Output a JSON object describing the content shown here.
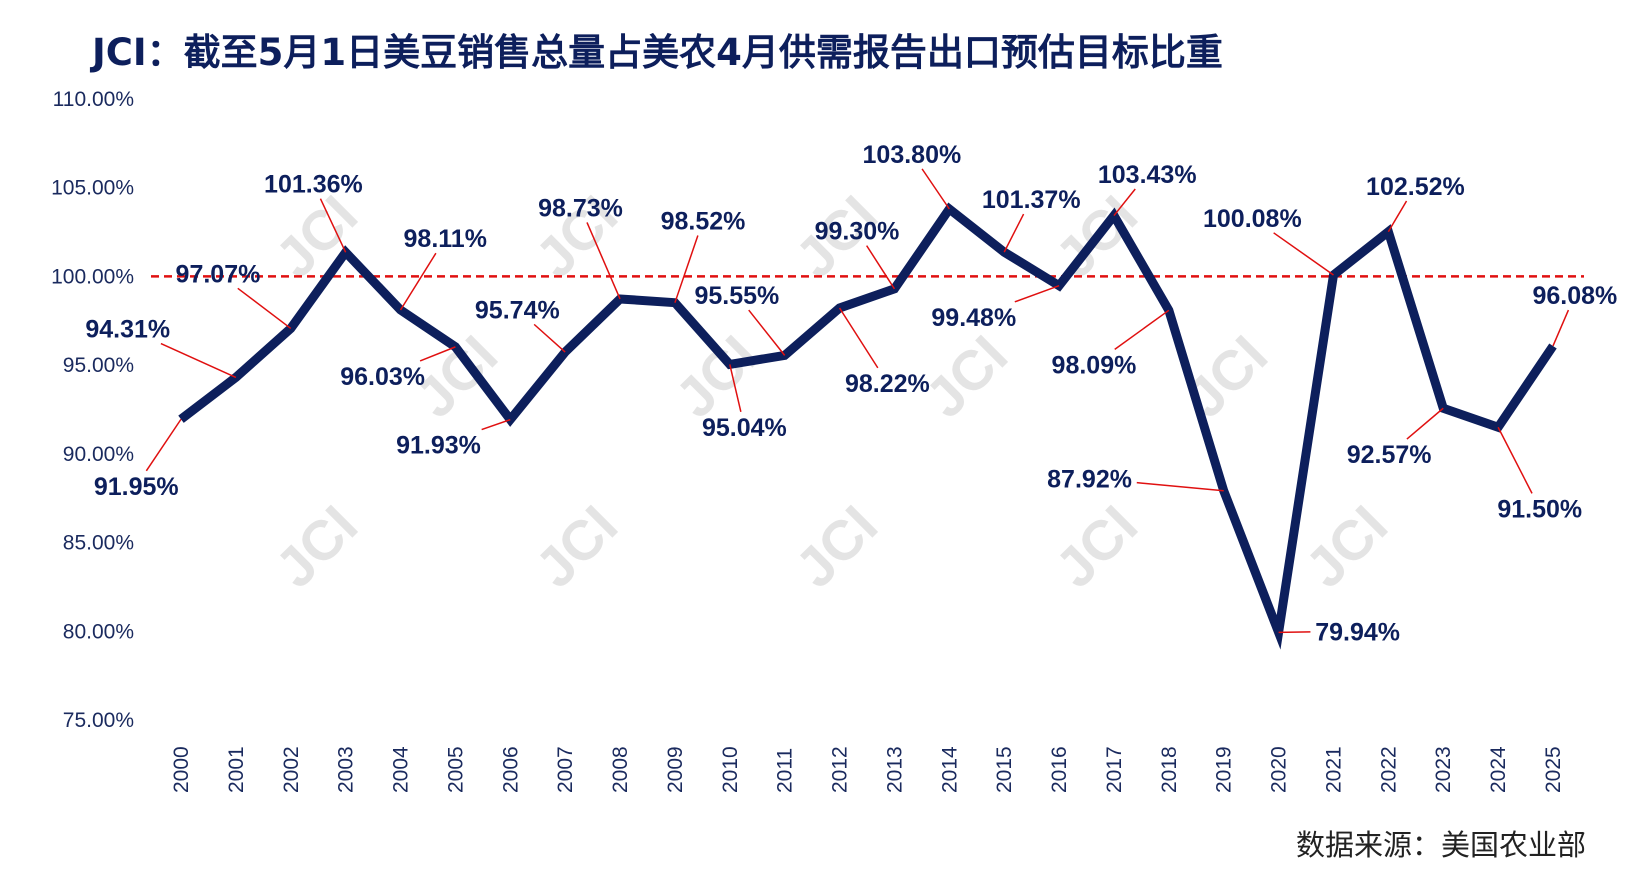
{
  "title": "JCI：截至5月1日美豆销售总量占美农4月供需报告出口预估目标比重",
  "source": "数据来源：美国农业部",
  "watermark": "JCI",
  "colors": {
    "line": "#0d1f5c",
    "reference_line": "#e01010",
    "leader": "#e01010",
    "text": "#0d1f5c"
  },
  "chart_data": {
    "type": "line",
    "title": "JCI：截至5月1日美豆销售总量占美农4月供需报告出口预估目标比重",
    "categories": [
      "2000",
      "2001",
      "2002",
      "2003",
      "2004",
      "2005",
      "2006",
      "2007",
      "2008",
      "2009",
      "2010",
      "2011",
      "2012",
      "2013",
      "2014",
      "2015",
      "2016",
      "2017",
      "2018",
      "2019",
      "2020",
      "2021",
      "2022",
      "2023",
      "2024",
      "2025"
    ],
    "values": [
      91.95,
      94.31,
      97.07,
      101.36,
      98.11,
      96.03,
      91.93,
      95.74,
      98.73,
      98.52,
      95.04,
      95.55,
      98.22,
      99.3,
      103.8,
      101.37,
      99.48,
      103.43,
      98.09,
      87.92,
      79.94,
      100.08,
      102.52,
      92.57,
      91.5,
      96.08
    ],
    "data_labels": [
      "91.95%",
      "94.31%",
      "97.07%",
      "101.36%",
      "98.11%",
      "96.03%",
      "91.93%",
      "95.74%",
      "98.73%",
      "98.52%",
      "95.04%",
      "95.55%",
      "98.22%",
      "99.30%",
      "103.80%",
      "101.37%",
      "99.48%",
      "103.43%",
      "98.09%",
      "87.92%",
      "79.94%",
      "100.08%",
      "102.52%",
      "92.57%",
      "91.50%",
      "96.08%"
    ],
    "ylim": [
      75,
      110
    ],
    "yticks": [
      "110.00%",
      "105.00%",
      "100.00%",
      "95.00%",
      "90.00%",
      "85.00%",
      "80.00%",
      "75.00%"
    ],
    "ytick_values": [
      110,
      105,
      100,
      95,
      90,
      85,
      80,
      75
    ],
    "reference_line": {
      "value": 100,
      "style": "dashed"
    },
    "xlabel": "",
    "ylabel": "",
    "grid": false,
    "legend": "none"
  }
}
